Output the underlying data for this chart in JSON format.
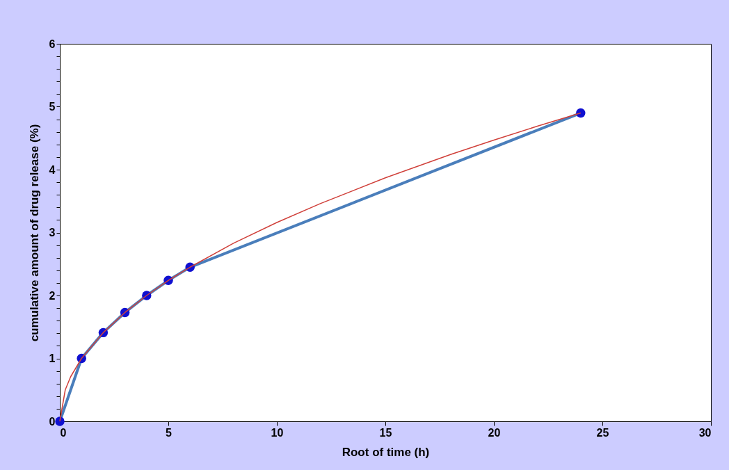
{
  "chart_data": {
    "type": "line",
    "xlabel": "Root of time (h)",
    "ylabel": "cumulative amount of drug release (%)",
    "xlim": [
      0,
      30
    ],
    "xticks": [
      0,
      5,
      10,
      15,
      20,
      25,
      30
    ],
    "ylim": [
      0,
      6
    ],
    "yticks": [
      0,
      {
        "value": 0.2,
        "label": null
      },
      {
        "value": 0.4,
        "label": null
      },
      {
        "value": 0.6,
        "label": null
      },
      {
        "value": 0.8,
        "label": null
      },
      1,
      {
        "value": 1.2,
        "label": null
      },
      {
        "value": 1.4,
        "label": null
      },
      {
        "value": 1.6,
        "label": null
      },
      {
        "value": 1.8,
        "label": null
      },
      2,
      {
        "value": 2.2,
        "label": null
      },
      {
        "value": 2.4,
        "label": null
      },
      {
        "value": 2.6,
        "label": null
      },
      {
        "value": 2.8,
        "label": null
      },
      3,
      {
        "value": 3.2,
        "label": null
      },
      {
        "value": 3.4,
        "label": null
      },
      {
        "value": 3.6,
        "label": null
      },
      {
        "value": 3.8,
        "label": null
      },
      4,
      {
        "value": 4.2,
        "label": null
      },
      {
        "value": 4.4,
        "label": null
      },
      {
        "value": 4.6,
        "label": null
      },
      {
        "value": 4.8,
        "label": null
      },
      5,
      {
        "value": 5.2,
        "label": null
      },
      {
        "value": 5.4,
        "label": null
      },
      {
        "value": 5.6,
        "label": null
      },
      {
        "value": 5.8,
        "label": null
      },
      6
    ],
    "grid": false,
    "series": [
      {
        "color": "#4a7ebb",
        "marker": "circle",
        "x": [
          0,
          1,
          2,
          3,
          4,
          5,
          6,
          24
        ],
        "values": [
          0,
          1.0,
          1.41,
          1.73,
          2.0,
          2.24,
          2.45,
          4.9
        ]
      },
      {
        "color": "#d0403a",
        "marker": "none",
        "x": [
          0,
          0.25,
          0.5,
          1,
          2,
          3,
          4,
          5,
          6,
          8,
          10,
          12,
          15,
          18,
          20,
          22,
          24
        ],
        "values": [
          0,
          0.5,
          0.71,
          1.0,
          1.41,
          1.73,
          2.0,
          2.24,
          2.45,
          2.83,
          3.16,
          3.46,
          3.87,
          4.24,
          4.47,
          4.69,
          4.9
        ]
      }
    ]
  }
}
